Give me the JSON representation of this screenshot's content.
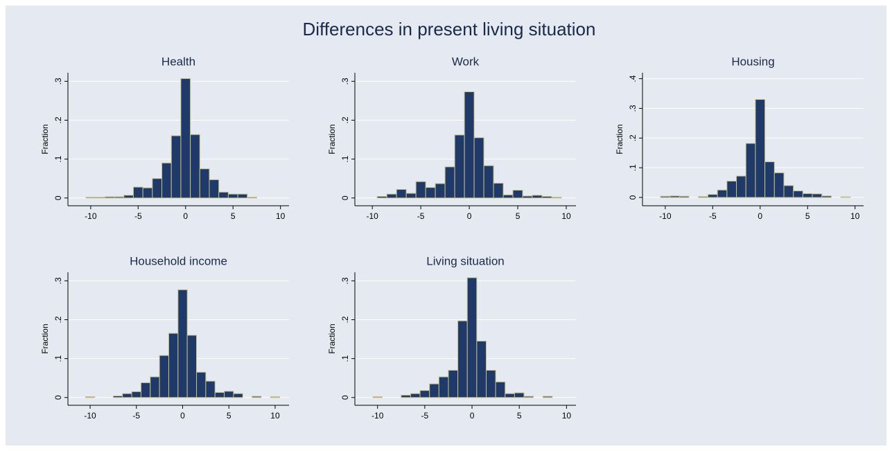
{
  "title": "Differences in present living situation",
  "chart_data": [
    {
      "type": "histogram",
      "title": "Health",
      "ylabel": "Fraction",
      "color": "#1f3a68",
      "edgecolor": "#c8bf86",
      "grid": true,
      "bins": [
        -10.5,
        -9.5,
        -8.5,
        -7.5,
        -6.5,
        -5.5,
        -4.5,
        -3.5,
        -2.5,
        -1.5,
        -0.5,
        0.5,
        1.5,
        2.5,
        3.5,
        4.5,
        5.5,
        6.5,
        7.5
      ],
      "values": [
        0.002,
        0.002,
        0.003,
        0.003,
        0.007,
        0.028,
        0.026,
        0.05,
        0.09,
        0.16,
        0.307,
        0.163,
        0.075,
        0.047,
        0.015,
        0.01,
        0.01,
        0.002
      ],
      "xlim": [
        -12.4,
        10.9
      ],
      "xticks": [
        -10,
        -5,
        0,
        5,
        10
      ],
      "ylim": [
        -0.02,
        0.322
      ],
      "yticks": [
        0,
        {
          "value": 0.1,
          "label": ".1"
        },
        {
          "value": 0.2,
          "label": ".2"
        },
        {
          "value": 0.3,
          "label": ".3"
        }
      ]
    },
    {
      "type": "histogram",
      "title": "Work",
      "ylabel": "Fraction",
      "color": "#1f3a68",
      "edgecolor": "#c8bf86",
      "grid": true,
      "bins": [
        -9.5,
        -8.5,
        -7.5,
        -6.5,
        -5.5,
        -4.5,
        -3.5,
        -2.5,
        -1.5,
        -0.5,
        0.5,
        1.5,
        2.5,
        3.5,
        4.5,
        5.5,
        6.5,
        7.5,
        8.5,
        9.5
      ],
      "values": [
        0.004,
        0.01,
        0.022,
        0.012,
        0.042,
        0.027,
        0.037,
        0.08,
        0.162,
        0.273,
        0.155,
        0.083,
        0.038,
        0.008,
        0.02,
        0.005,
        0.007,
        0.004,
        0.002
      ],
      "xlim": [
        -11.8,
        11
      ],
      "xticks": [
        -10,
        -5,
        0,
        5,
        10
      ],
      "ylim": [
        -0.02,
        0.322
      ],
      "yticks": [
        0,
        {
          "value": 0.1,
          "label": ".1"
        },
        {
          "value": 0.2,
          "label": ".2"
        },
        {
          "value": 0.3,
          "label": ".3"
        }
      ]
    },
    {
      "type": "histogram",
      "title": "Housing",
      "ylabel": "Fraction",
      "color": "#1f3a68",
      "edgecolor": "#c8bf86",
      "grid": true,
      "bins": [
        -10.5,
        -9.5,
        -8.5,
        -7.5,
        -6.5,
        -5.5,
        -4.5,
        -3.5,
        -2.5,
        -1.5,
        -0.5,
        0.5,
        1.5,
        2.5,
        3.5,
        4.5,
        5.5,
        6.5,
        7.5,
        8.5,
        9.5
      ],
      "values": [
        0.004,
        0.005,
        0.004,
        0,
        0.003,
        0.01,
        0.025,
        0.055,
        0.072,
        0.182,
        0.33,
        0.12,
        0.083,
        0.04,
        0.022,
        0.013,
        0.012,
        0.005,
        0,
        0.002
      ],
      "xlim": [
        -12.4,
        10.9
      ],
      "xticks": [
        -10,
        -5,
        0,
        5,
        10
      ],
      "ylim": [
        -0.028,
        0.42
      ],
      "yticks": [
        0,
        {
          "value": 0.1,
          "label": ".1"
        },
        {
          "value": 0.2,
          "label": ".2"
        },
        {
          "value": 0.3,
          "label": ".3"
        },
        {
          "value": 0.4,
          "label": ".4"
        }
      ]
    },
    {
      "type": "histogram",
      "title": "Household income",
      "ylabel": "Fraction",
      "color": "#1f3a68",
      "edgecolor": "#c8bf86",
      "grid": true,
      "bins": [
        -10.5,
        -9.5,
        -8.5,
        -7.5,
        -6.5,
        -5.5,
        -4.5,
        -3.5,
        -2.5,
        -1.5,
        -0.5,
        0.5,
        1.5,
        2.5,
        3.5,
        4.5,
        5.5,
        6.5,
        7.5,
        8.5,
        9.5,
        10.5
      ],
      "values": [
        0.002,
        0,
        0,
        0.004,
        0.01,
        0.015,
        0.038,
        0.053,
        0.108,
        0.165,
        0.277,
        0.16,
        0.065,
        0.042,
        0.013,
        0.016,
        0.01,
        0,
        0.003,
        0,
        0.002
      ],
      "xlim": [
        -12.4,
        11.5
      ],
      "xticks": [
        -10,
        -5,
        0,
        5,
        10
      ],
      "ylim": [
        -0.02,
        0.322
      ],
      "yticks": [
        0,
        {
          "value": 0.1,
          "label": ".1"
        },
        {
          "value": 0.2,
          "label": ".2"
        },
        {
          "value": 0.3,
          "label": ".3"
        }
      ]
    },
    {
      "type": "histogram",
      "title": "Living situation",
      "ylabel": "Fraction",
      "color": "#1f3a68",
      "edgecolor": "#c8bf86",
      "grid": true,
      "bins": [
        -10.5,
        -9.5,
        -8.5,
        -7.5,
        -6.5,
        -5.5,
        -4.5,
        -3.5,
        -2.5,
        -1.5,
        -0.5,
        0.5,
        1.5,
        2.5,
        3.5,
        4.5,
        5.5,
        6.5,
        7.5,
        8.5
      ],
      "values": [
        0.002,
        0,
        0,
        0.006,
        0.01,
        0.018,
        0.035,
        0.053,
        0.07,
        0.197,
        0.308,
        0.145,
        0.07,
        0.04,
        0.01,
        0.012,
        0.003,
        0,
        0.003
      ],
      "xlim": [
        -12.4,
        11
      ],
      "xticks": [
        -10,
        -5,
        0,
        5,
        10
      ],
      "ylim": [
        -0.02,
        0.322
      ],
      "yticks": [
        0,
        {
          "value": 0.1,
          "label": ".1"
        },
        {
          "value": 0.2,
          "label": ".2"
        },
        {
          "value": 0.3,
          "label": ".3"
        }
      ]
    }
  ]
}
